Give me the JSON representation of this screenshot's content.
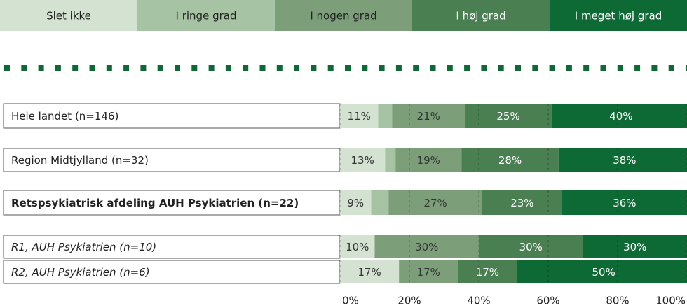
{
  "chart_data": {
    "type": "stacked-barh",
    "categories": [
      "Hele landet (n=146)",
      "Region Midtjylland (n=32)",
      "Retspsykiatrisk afdeling AUH Psykiatrien (n=22)",
      "R1, AUH Psykiatrien (n=10)",
      "R2, AUH Psykiatrien (n=6)"
    ],
    "category_styles": [
      "normal",
      "normal",
      "bold",
      "italic",
      "italic"
    ],
    "series": [
      {
        "name": "Slet ikke",
        "color": "#d3e2d1",
        "values": [
          11,
          13,
          9,
          10,
          17
        ],
        "value_labels": [
          "11%",
          "13%",
          "9%",
          "10%",
          "17%"
        ]
      },
      {
        "name": "I ringe grad",
        "color": "#a6c3a3",
        "values": [
          4,
          3,
          5,
          0,
          0
        ],
        "value_labels": [
          null,
          null,
          null,
          null,
          null
        ]
      },
      {
        "name": "I nogen grad",
        "color": "#7c9f7a",
        "values": [
          21,
          19,
          27,
          30,
          17
        ],
        "value_labels": [
          "21%",
          "19%",
          "27%",
          "30%",
          "17%"
        ]
      },
      {
        "name": "I høj grad",
        "color": "#4a7f51",
        "values": [
          25,
          28,
          23,
          30,
          17
        ],
        "value_labels": [
          "25%",
          "28%",
          "23%",
          "30%",
          "17%"
        ]
      },
      {
        "name": "I meget høj grad",
        "color": "#0d6a35",
        "values": [
          40,
          38,
          36,
          30,
          50
        ],
        "value_labels": [
          "40%",
          "38%",
          "36%",
          "30%",
          "50%"
        ]
      }
    ],
    "xlim": [
      0,
      100
    ],
    "xticks": [
      {
        "value": 0,
        "label": "0%"
      },
      {
        "value": 20,
        "label": "20%"
      },
      {
        "value": 40,
        "label": "40%"
      },
      {
        "value": 60,
        "label": "60%"
      },
      {
        "value": 80,
        "label": "80%"
      },
      {
        "value": 100,
        "label": "100%"
      }
    ],
    "grid": true
  }
}
